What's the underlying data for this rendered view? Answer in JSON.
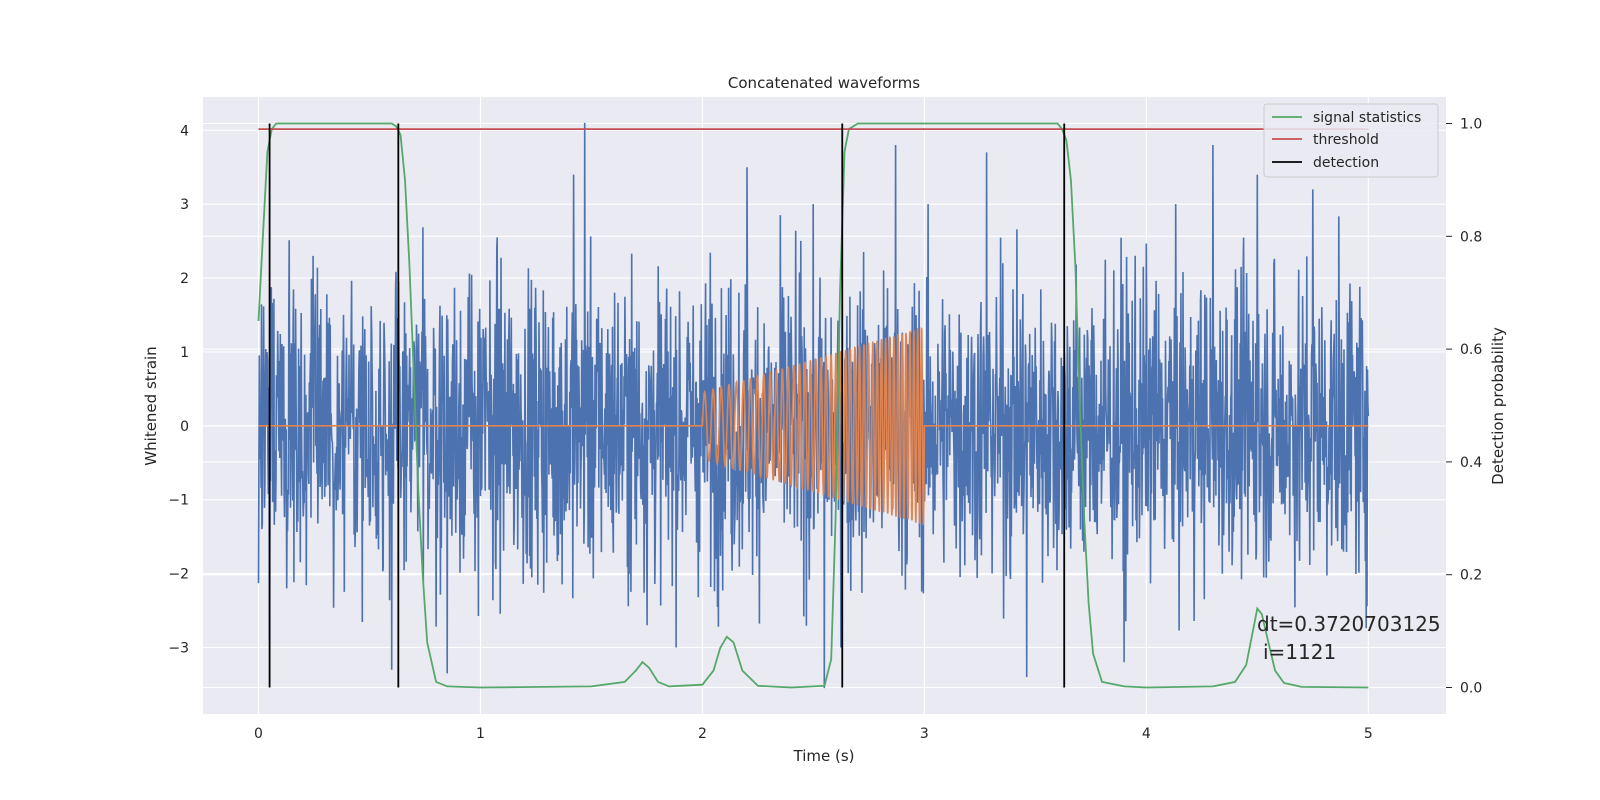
{
  "chart_data": {
    "type": "line",
    "title": "Concatenated waveforms",
    "xlabel": "Time (s)",
    "ylabel": "Whitened strain",
    "y2label": "Detection probability",
    "xlim": [
      -0.25,
      5.35
    ],
    "ylim": [
      -3.9,
      4.45
    ],
    "y2lim": [
      -0.047,
      1.047
    ],
    "xticks": [
      0,
      1,
      2,
      3,
      4,
      5
    ],
    "yticks": [
      -3,
      -2,
      -1,
      0,
      1,
      2,
      3,
      4
    ],
    "y2ticks": [
      0.0,
      0.2,
      0.4,
      0.6,
      0.8,
      1.0
    ],
    "y2ticklabels": [
      "0.0",
      "0.2",
      "0.4",
      "0.6",
      "0.8",
      "1.0"
    ],
    "grid": true,
    "legend_position": "top-right",
    "colors": {
      "noise": "#4c72b0",
      "injection": "#dd8452",
      "statistics": "#55a868",
      "threshold": "#c44e52",
      "detection": "#000000",
      "axes_bg": "#eaeaf2",
      "grid": "#ffffff"
    },
    "series": [
      {
        "legend": false,
        "axis": "left",
        "style": "noise",
        "x_range": [
          0,
          5
        ],
        "typical_amplitude": 1.0,
        "peaks": [
          {
            "x": 0.05,
            "y": -2.9
          },
          {
            "x": 0.6,
            "y": -3.3
          },
          {
            "x": 0.85,
            "y": -3.35
          },
          {
            "x": 1.47,
            "y": 4.1
          },
          {
            "x": 1.42,
            "y": 3.4
          },
          {
            "x": 1.75,
            "y": -2.7
          },
          {
            "x": 2.2,
            "y": 3.5
          },
          {
            "x": 2.55,
            "y": -3.55
          },
          {
            "x": 2.87,
            "y": 3.8
          },
          {
            "x": 3.28,
            "y": 3.7
          },
          {
            "x": 3.46,
            "y": -3.4
          },
          {
            "x": 3.9,
            "y": -3.2
          },
          {
            "x": 4.3,
            "y": 3.8
          },
          {
            "x": 4.5,
            "y": 3.4
          },
          {
            "x": 4.75,
            "y": 3.2
          }
        ]
      },
      {
        "legend": false,
        "axis": "left",
        "style": "injection",
        "segments": [
          {
            "x": [
              0,
              2
            ],
            "y": 0
          },
          {
            "x": [
              2,
              3
            ],
            "chirp": true,
            "amplitude_start": 0.45,
            "amplitude_end": 1.35,
            "cycles": 42
          },
          {
            "x": [
              3,
              5
            ],
            "y": 0
          }
        ]
      },
      {
        "name": "signal statistics",
        "axis": "right",
        "style": "statistics",
        "x": [
          0,
          0.02,
          0.04,
          0.06,
          0.08,
          0.1,
          0.15,
          0.3,
          0.5,
          0.6,
          0.62,
          0.64,
          0.66,
          0.68,
          0.7,
          0.72,
          0.74,
          0.76,
          0.8,
          0.85,
          1.0,
          1.5,
          1.65,
          1.7,
          1.73,
          1.76,
          1.8,
          1.85,
          2.0,
          2.05,
          2.08,
          2.11,
          2.14,
          2.18,
          2.25,
          2.4,
          2.55,
          2.58,
          2.6,
          2.62,
          2.64,
          2.66,
          2.7,
          2.8,
          3.0,
          3.6,
          3.62,
          3.64,
          3.66,
          3.68,
          3.7,
          3.72,
          3.74,
          3.76,
          3.8,
          3.9,
          4.0,
          4.3,
          4.4,
          4.45,
          4.48,
          4.5,
          4.52,
          4.55,
          4.58,
          4.62,
          4.7,
          5.0
        ],
        "y": [
          0.65,
          0.8,
          0.95,
          0.99,
          1.0,
          1.0,
          1.0,
          1.0,
          1.0,
          1.0,
          0.995,
          0.98,
          0.9,
          0.75,
          0.55,
          0.35,
          0.2,
          0.08,
          0.01,
          0.002,
          0.0,
          0.002,
          0.01,
          0.03,
          0.045,
          0.035,
          0.01,
          0.002,
          0.005,
          0.03,
          0.07,
          0.09,
          0.08,
          0.03,
          0.003,
          0.0,
          0.003,
          0.05,
          0.3,
          0.7,
          0.95,
          0.99,
          1.0,
          1.0,
          1.0,
          1.0,
          0.99,
          0.97,
          0.9,
          0.75,
          0.5,
          0.3,
          0.15,
          0.06,
          0.01,
          0.002,
          0.0,
          0.002,
          0.01,
          0.04,
          0.1,
          0.14,
          0.13,
          0.08,
          0.03,
          0.008,
          0.001,
          0.0
        ]
      },
      {
        "name": "threshold",
        "axis": "right",
        "style": "threshold",
        "x": [
          0,
          5
        ],
        "y": [
          0.99,
          0.99
        ]
      },
      {
        "name": "detection",
        "axis": "right",
        "style": "detection",
        "vlines": [
          0.05,
          0.63,
          2.63,
          3.63
        ],
        "y": [
          0.0,
          1.0
        ]
      }
    ],
    "annotation": {
      "line1": "dt=0.3720703125",
      "line2": "i=1121"
    }
  }
}
